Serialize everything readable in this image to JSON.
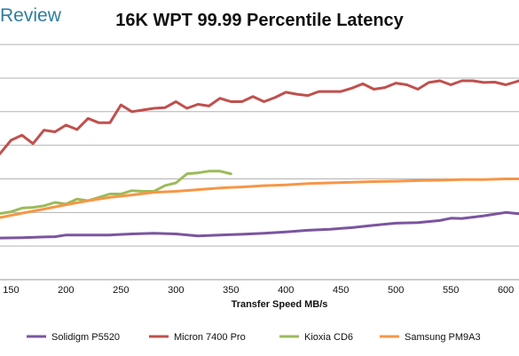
{
  "header": {
    "brand": "Review",
    "title": "16K WPT 99.99 Percentile Latency"
  },
  "chart_data": {
    "type": "line",
    "title": "16K WPT 99.99 Percentile Latency",
    "xlabel": "Transfer Speed MB/s",
    "ylabel": "",
    "xlim": [
      140,
      612
    ],
    "ylim": [
      0,
      7.4
    ],
    "x_ticks": [
      150,
      200,
      250,
      300,
      350,
      400,
      450,
      500,
      550,
      600
    ],
    "y_gridlines": [
      1,
      2,
      3,
      4,
      5,
      6,
      7
    ],
    "grid": true,
    "legend_position": "bottom",
    "series": [
      {
        "name": "Solidigm P5520",
        "color": "#7b559f",
        "x": [
          140,
          160,
          180,
          190,
          200,
          220,
          240,
          260,
          280,
          300,
          320,
          340,
          360,
          380,
          400,
          420,
          440,
          460,
          480,
          500,
          520,
          540,
          550,
          560,
          580,
          600,
          612
        ],
        "y": [
          1.24,
          1.25,
          1.27,
          1.28,
          1.33,
          1.33,
          1.33,
          1.36,
          1.38,
          1.36,
          1.3,
          1.33,
          1.35,
          1.38,
          1.42,
          1.47,
          1.5,
          1.55,
          1.62,
          1.68,
          1.7,
          1.76,
          1.83,
          1.82,
          1.9,
          2.0,
          1.96
        ]
      },
      {
        "name": "Micron 7400 Pro",
        "color": "#c0504d",
        "x": [
          140,
          150,
          160,
          170,
          180,
          190,
          200,
          210,
          220,
          230,
          240,
          250,
          260,
          270,
          280,
          290,
          300,
          310,
          320,
          330,
          340,
          350,
          360,
          370,
          380,
          390,
          400,
          410,
          420,
          430,
          440,
          450,
          460,
          470,
          480,
          490,
          500,
          510,
          520,
          530,
          540,
          550,
          560,
          570,
          580,
          590,
          600,
          612
        ],
        "y": [
          3.75,
          4.15,
          4.3,
          4.05,
          4.45,
          4.4,
          4.6,
          4.47,
          4.8,
          4.67,
          4.67,
          5.2,
          5.0,
          5.05,
          5.1,
          5.12,
          5.3,
          5.1,
          5.22,
          5.17,
          5.4,
          5.3,
          5.3,
          5.45,
          5.3,
          5.42,
          5.58,
          5.52,
          5.48,
          5.6,
          5.6,
          5.6,
          5.7,
          5.83,
          5.67,
          5.72,
          5.85,
          5.8,
          5.67,
          5.87,
          5.92,
          5.8,
          5.92,
          5.92,
          5.87,
          5.88,
          5.8,
          5.92
        ]
      },
      {
        "name": "Kioxia CD6",
        "color": "#9bbb59",
        "x": [
          140,
          150,
          160,
          170,
          180,
          190,
          200,
          210,
          220,
          230,
          240,
          250,
          260,
          270,
          280,
          290,
          300,
          310,
          320,
          330,
          340,
          350
        ],
        "y": [
          1.97,
          2.02,
          2.13,
          2.15,
          2.2,
          2.3,
          2.25,
          2.4,
          2.35,
          2.45,
          2.55,
          2.55,
          2.65,
          2.63,
          2.63,
          2.8,
          2.88,
          3.15,
          3.18,
          3.23,
          3.23,
          3.15
        ]
      },
      {
        "name": "Samsung PM9A3",
        "color": "#f79646",
        "x": [
          140,
          160,
          180,
          200,
          220,
          240,
          260,
          280,
          300,
          320,
          340,
          360,
          380,
          400,
          420,
          440,
          460,
          480,
          500,
          520,
          540,
          560,
          580,
          600,
          612
        ],
        "y": [
          1.85,
          1.98,
          2.1,
          2.23,
          2.35,
          2.45,
          2.52,
          2.6,
          2.63,
          2.68,
          2.73,
          2.76,
          2.8,
          2.82,
          2.86,
          2.88,
          2.9,
          2.92,
          2.93,
          2.95,
          2.96,
          2.98,
          2.98,
          3.0,
          3.0
        ]
      }
    ]
  }
}
